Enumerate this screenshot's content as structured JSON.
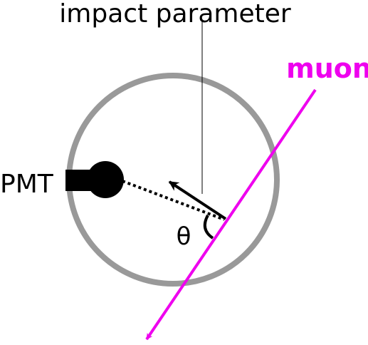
{
  "labels": {
    "impact_parameter": "impact parameter",
    "muon": "muon",
    "pmt": "PMT",
    "theta": "θ"
  },
  "colors": {
    "tank_outline": "#999999",
    "muon": "#ee00ee",
    "pmt": "#000000",
    "text": "#000000",
    "background": "#ffffff"
  }
}
